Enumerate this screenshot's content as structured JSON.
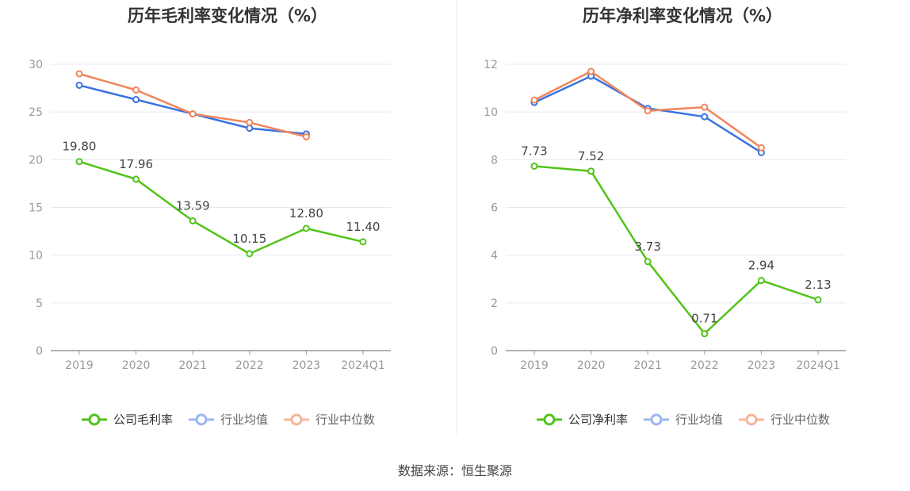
{
  "chart_data": [
    {
      "type": "line",
      "title": "历年毛利率变化情况（%）",
      "categories": [
        "2019",
        "2020",
        "2021",
        "2022",
        "2023",
        "2024Q1"
      ],
      "ylim": [
        0,
        30
      ],
      "yticks": [
        0,
        5,
        10,
        15,
        20,
        25,
        30
      ],
      "series": [
        {
          "name": "公司毛利率",
          "color": "#52c41a",
          "values": [
            19.8,
            17.96,
            13.59,
            10.15,
            12.8,
            11.4
          ],
          "labels": [
            "19.80",
            "17.96",
            "13.59",
            "10.15",
            "12.80",
            "11.40"
          ]
        },
        {
          "name": "行业均值",
          "color": "#3b73e0",
          "values": [
            27.8,
            26.3,
            24.8,
            23.3,
            22.7,
            null
          ]
        },
        {
          "name": "行业中位数",
          "color": "#f0865a",
          "values": [
            29.0,
            27.3,
            24.8,
            23.9,
            22.4,
            null
          ]
        }
      ]
    },
    {
      "type": "line",
      "title": "历年净利率变化情况（%）",
      "categories": [
        "2019",
        "2020",
        "2021",
        "2022",
        "2023",
        "2024Q1"
      ],
      "ylim": [
        0,
        12
      ],
      "yticks": [
        0,
        2,
        4,
        6,
        8,
        10,
        12
      ],
      "series": [
        {
          "name": "公司净利率",
          "color": "#52c41a",
          "values": [
            7.73,
            7.52,
            3.73,
            0.71,
            2.94,
            2.13
          ],
          "labels": [
            "7.73",
            "7.52",
            "3.73",
            "0.71",
            "2.94",
            "2.13"
          ]
        },
        {
          "name": "行业均值",
          "color": "#3b73e0",
          "values": [
            10.4,
            11.5,
            10.15,
            9.8,
            8.3,
            null
          ]
        },
        {
          "name": "行业中位数",
          "color": "#f0865a",
          "values": [
            10.5,
            11.7,
            10.05,
            10.2,
            8.5,
            null
          ]
        }
      ]
    }
  ],
  "source": "数据来源：恒生聚源"
}
